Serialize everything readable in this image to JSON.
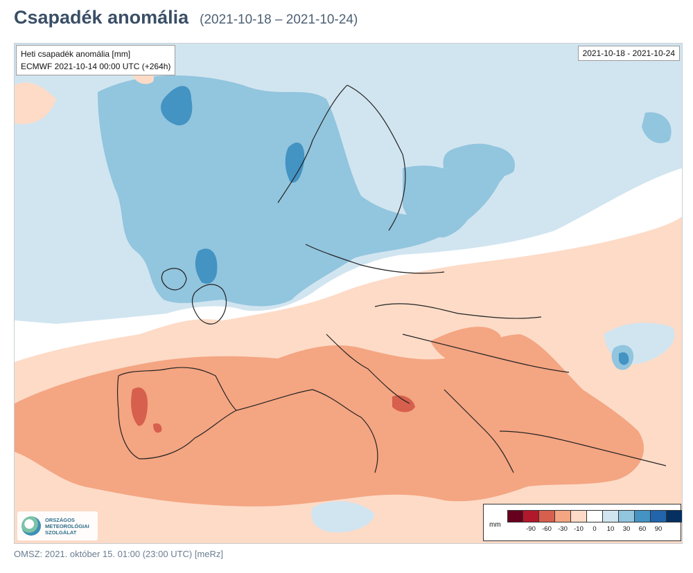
{
  "header": {
    "title": "Csapadék anomália",
    "date_range": "(2021-10-18 – 2021-10-24)"
  },
  "map": {
    "info_line1": "Heti csapadék anomália [mm]",
    "info_line2": "ECMWF 2021-10-14 00:00 UTC (+264h)",
    "date_box": "2021-10-18 - 2021-10-24"
  },
  "logo": {
    "text": "ORSZÁGOS\nMETEOROLÓGIAI\nSZOLGÁLAT"
  },
  "legend": {
    "unit": "mm",
    "colors": [
      "#67001f",
      "#b2182b",
      "#d6604d",
      "#f4a582",
      "#fddbc7",
      "#ffffff",
      "#d1e5f0",
      "#92c5de",
      "#4393c3",
      "#2166ac",
      "#053061"
    ],
    "ticks": [
      "-90",
      "-60",
      "-30",
      "-10",
      "0",
      "10",
      "30",
      "60",
      "90"
    ]
  },
  "footer": {
    "text": "OMSZ: 2021. október 15. 01:00 (23:00  UTC)  [meRz]"
  }
}
